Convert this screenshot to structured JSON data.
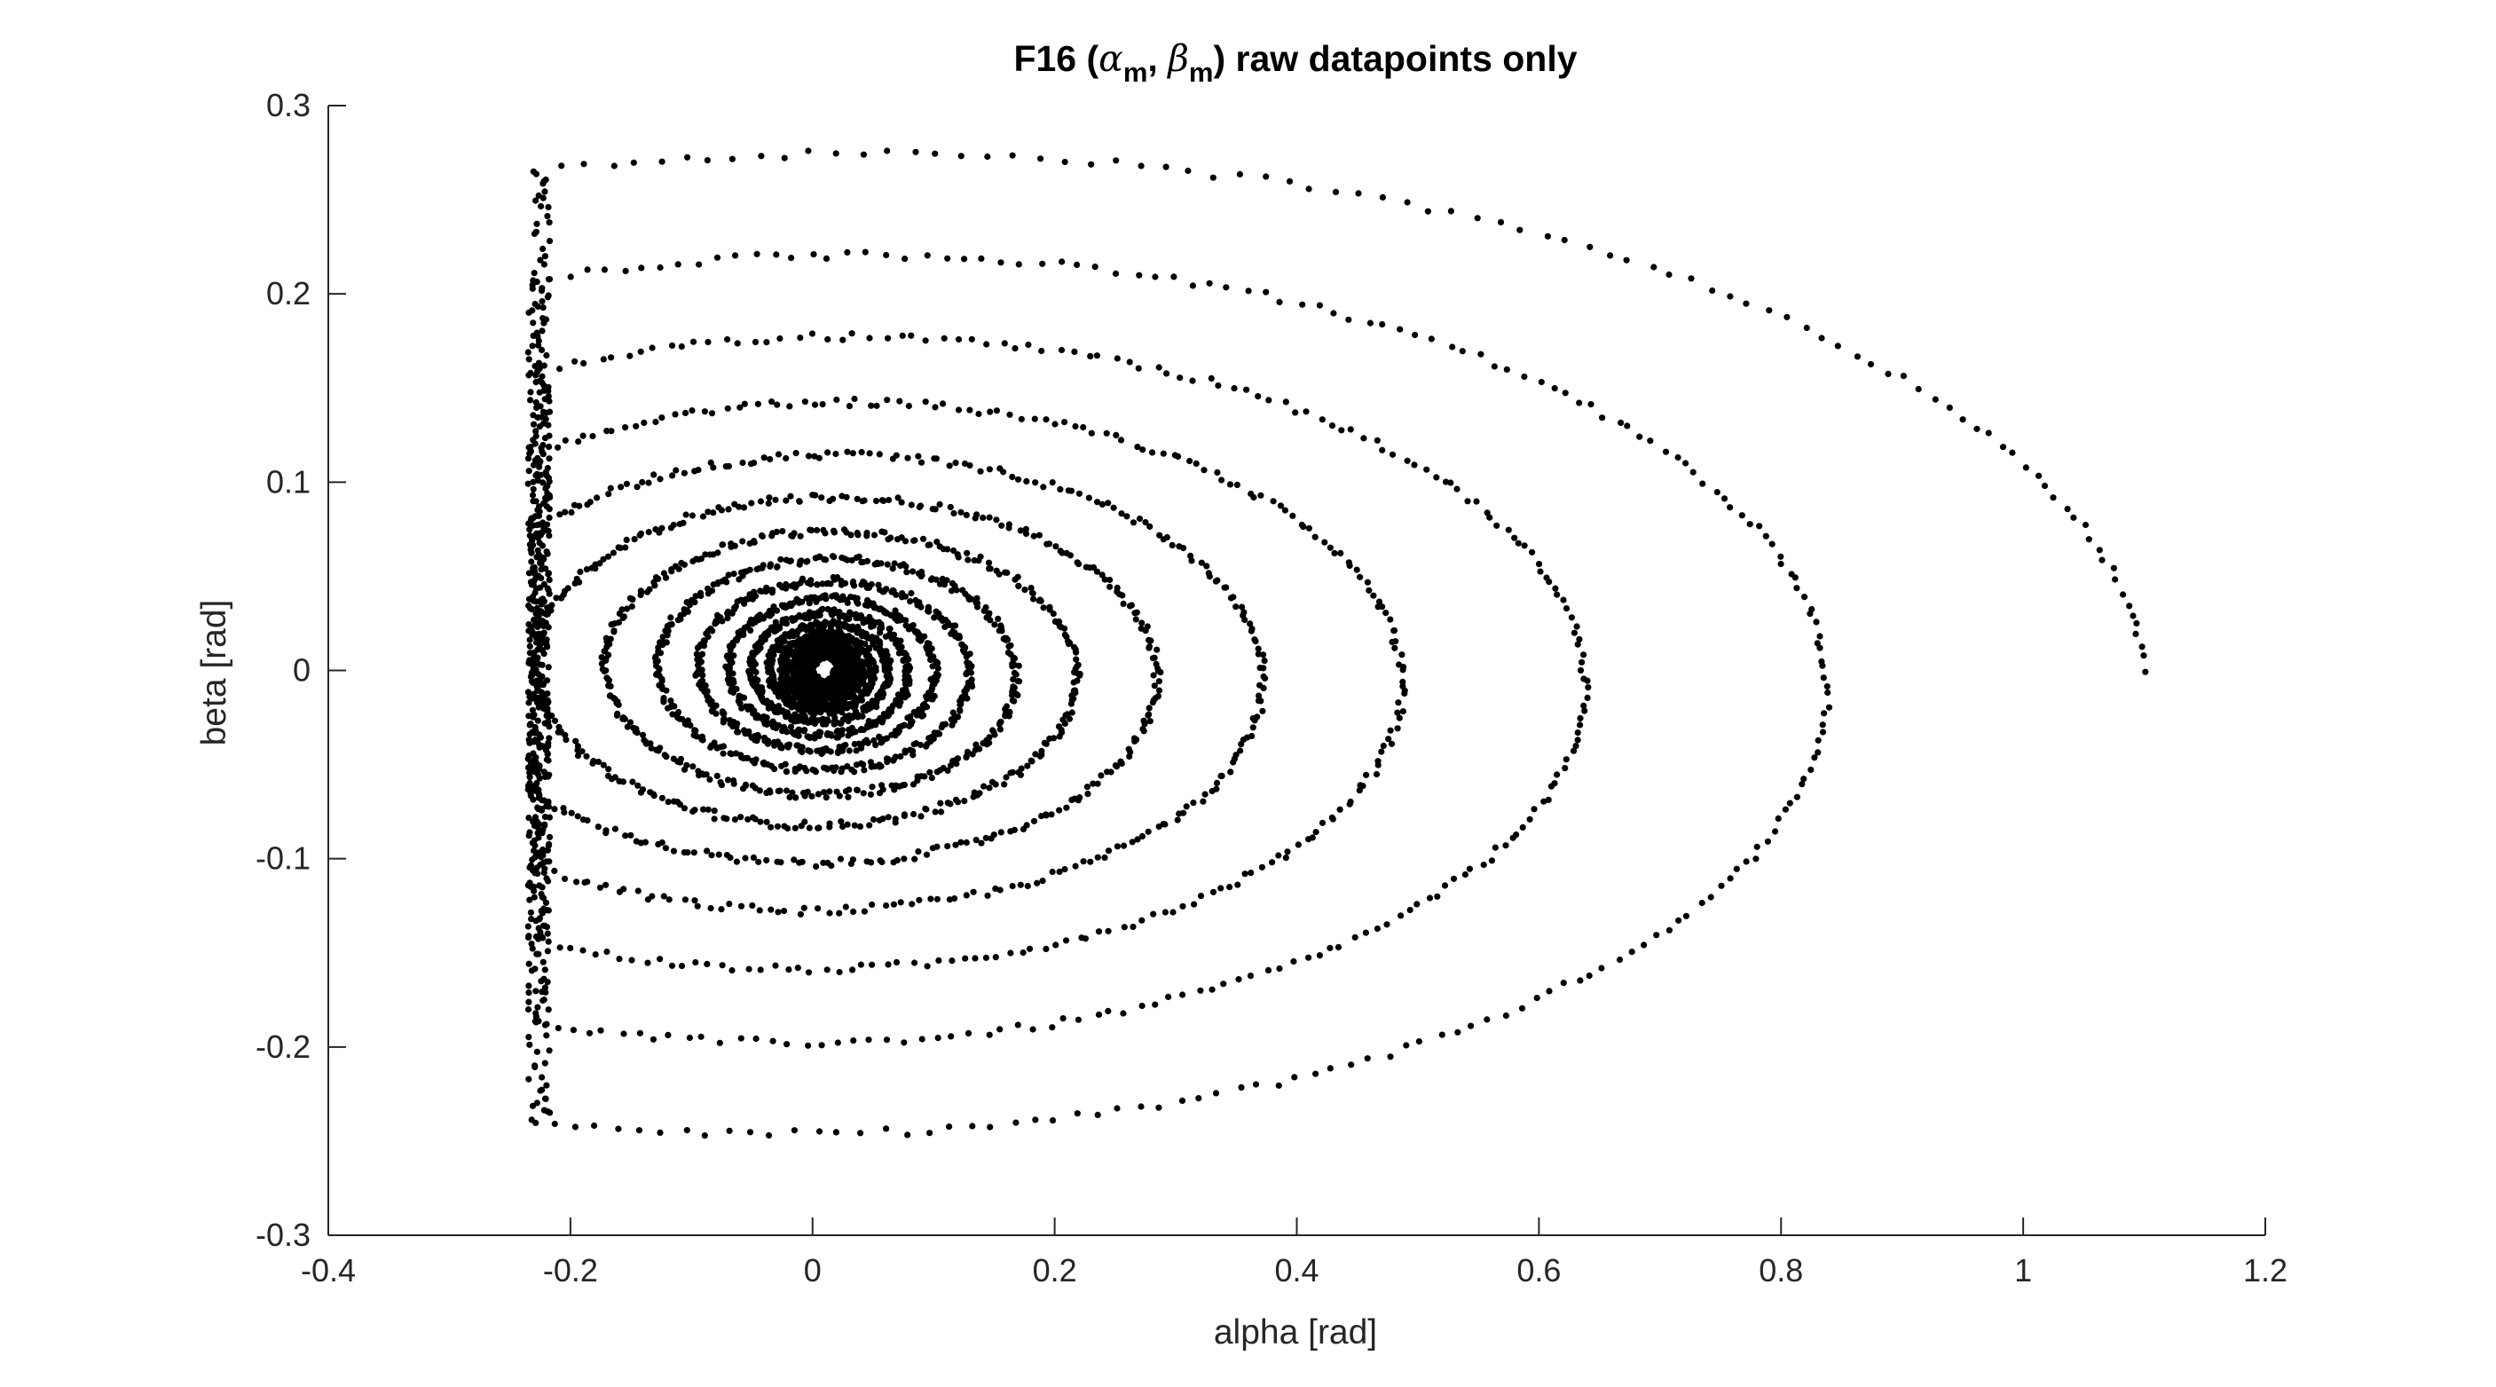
{
  "chart_data": {
    "type": "scatter",
    "title": {
      "prefix": "F16 (",
      "alpha_symbol": "α",
      "alpha_subscript": "m",
      "separator": ", ",
      "beta_symbol": "β",
      "beta_subscript": "m",
      "suffix": ") raw datapoints only"
    },
    "xlabel": "alpha [rad]",
    "ylabel": "beta [rad]",
    "xlim": [
      -0.4,
      1.2
    ],
    "ylim": [
      -0.3,
      0.3
    ],
    "xticks": [
      -0.4,
      -0.2,
      0,
      0.2,
      0.4,
      0.6,
      0.8,
      1,
      1.2
    ],
    "xtick_labels": [
      "-0.4",
      "-0.2",
      "0",
      "0.2",
      "0.4",
      "0.6",
      "0.8",
      "1",
      "1.2"
    ],
    "yticks": [
      -0.3,
      -0.2,
      -0.1,
      0,
      0.1,
      0.2,
      0.3
    ],
    "ytick_labels": [
      "-0.3",
      "-0.2",
      "-0.1",
      "0",
      "0.1",
      "0.2",
      "0.3"
    ],
    "grid": false,
    "box": false,
    "marker_color": "#000000",
    "axis_color": "#262626",
    "series": [
      {
        "values_description": "damped spiral trajectory; points sampled along decaying elliptical orbits, clipped at alpha = -0.235",
        "center": [
          0.01,
          0.0
        ],
        "alpha_clip_min": -0.235,
        "envelope": {
          "alpha_max_at_start": 1.1,
          "beta_amp_at_start": 0.29,
          "alpha_max_at_end": 0.02,
          "beta_amp_at_end": 0.007
        },
        "turns": 17,
        "point_count": 5200
      }
    ]
  }
}
